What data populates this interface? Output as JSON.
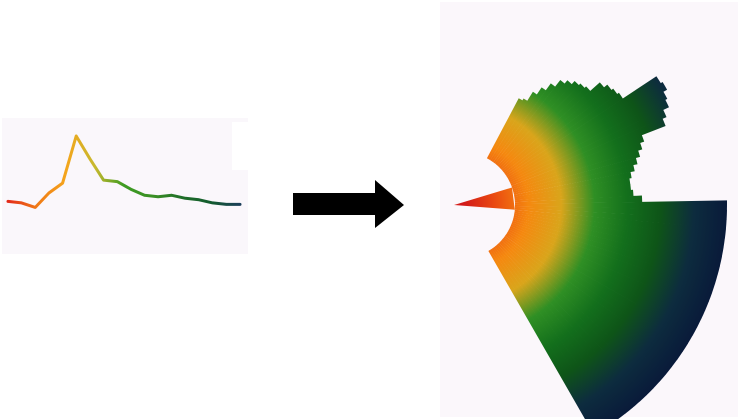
{
  "diagram": {
    "line_plot": {
      "values": [
        0.14,
        0.12,
        0.06,
        0.25,
        0.38,
        1.0,
        0.7,
        0.42,
        0.4,
        0.3,
        0.22,
        0.2,
        0.22,
        0.18,
        0.16,
        0.12,
        0.1,
        0.1
      ],
      "colors": [
        "#e32b1a",
        "#f07a16",
        "#f4a51c",
        "#c7b92e",
        "#3c9b22",
        "#3a8f24",
        "#1f6e28",
        "#125a2e",
        "#1c3f5a"
      ]
    },
    "arrow": {
      "direction": "right",
      "color": "#000000"
    },
    "radial_plot": {
      "inner_radius": 0.2,
      "values": [
        0.32,
        0.33,
        0.38,
        0.42,
        0.46,
        0.5,
        0.52,
        0.54,
        0.55,
        0.56,
        0.62,
        0.64,
        0.65,
        0.66,
        0.85,
        0.86,
        0.84,
        0.83,
        0.8,
        0.78,
        0.66,
        0.64,
        0.62,
        0.6,
        0.58,
        0.56,
        0.55,
        0.55,
        0.56,
        0.6,
        1.0,
        1.0,
        1.0,
        1.0,
        1.0,
        1.0,
        1.0,
        1.0,
        1.0,
        1.0,
        1.0,
        1.0,
        1.0,
        1.0,
        1.0,
        1.0,
        1.0,
        1.0,
        1.0,
        1.0,
        1.0,
        1.0,
        1.0,
        1.0,
        1.0,
        1.0,
        1.0,
        1.0,
        1.0,
        1.0
      ],
      "colors": [
        "#d0161a",
        "#ea4a10",
        "#f5880f",
        "#d9a51b",
        "#2f8f24",
        "#136f1c",
        "#0e5418",
        "#0d2c3e",
        "#091a3a"
      ]
    }
  }
}
